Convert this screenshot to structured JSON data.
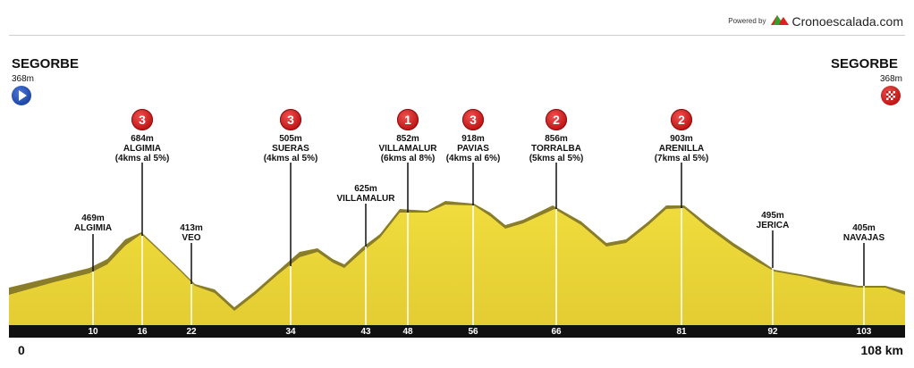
{
  "brand": {
    "powered_by": "Powered by",
    "site": "Cronoescalada.com"
  },
  "start": {
    "city": "SEGORBE",
    "altitude": "368m",
    "icon": "play-arrow-icon"
  },
  "finish": {
    "city": "SEGORBE",
    "altitude": "368m",
    "icon": "checkered-flag-icon"
  },
  "axis": {
    "start_label": "0",
    "end_label": "108 km",
    "ticks": [
      "10",
      "16",
      "22",
      "34",
      "43",
      "48",
      "56",
      "66",
      "81",
      "92",
      "103"
    ]
  },
  "climbs": [
    {
      "category": "3",
      "alt": "684m",
      "name": "ALGIMIA",
      "info": "(4kms al 5%)"
    },
    {
      "category": "3",
      "alt": "505m",
      "name": "SUERAS",
      "info": "(4kms al 5%)"
    },
    {
      "category": "1",
      "alt": "852m",
      "name": "VILLAMALUR",
      "info": "(6kms al 8%)"
    },
    {
      "category": "3",
      "alt": "918m",
      "name": "PAVIAS",
      "info": "(4kms al 6%)"
    },
    {
      "category": "2",
      "alt": "856m",
      "name": "TORRALBA",
      "info": "(5kms al 5%)"
    },
    {
      "category": "2",
      "alt": "903m",
      "name": "ARENILLA",
      "info": "(7kms al 5%)"
    }
  ],
  "waypoints": [
    {
      "alt": "469m",
      "name": "ALGIMIA"
    },
    {
      "alt": "413m",
      "name": "VEO"
    },
    {
      "alt": "625m",
      "name": "VILLAMALUR"
    },
    {
      "alt": "495m",
      "name": "JERICA"
    },
    {
      "alt": "405m",
      "name": "NAVAJAS"
    }
  ],
  "colors": {
    "fill": "#e8d43a",
    "shade": "#8a7d2a",
    "badge": "#d42020",
    "axis": "#111111"
  }
}
